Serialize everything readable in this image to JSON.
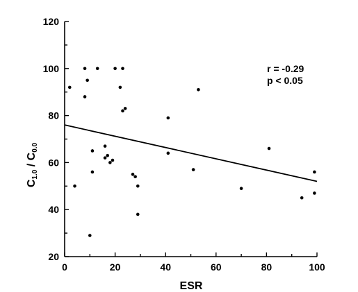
{
  "chart_data": {
    "type": "scatter",
    "title": "",
    "xlabel": "ESR",
    "ylabel": {
      "main1": "C",
      "sub1": "1.0",
      "slash": " / ",
      "main2": "C",
      "sub2": "0.0"
    },
    "xlim": [
      0,
      100
    ],
    "ylim": [
      20,
      120
    ],
    "x_ticks": [
      "0",
      "20",
      "40",
      "60",
      "80",
      "100"
    ],
    "y_ticks": [
      "20",
      "40",
      "60",
      "80",
      "100",
      "120"
    ],
    "grid": false,
    "annotations": {
      "r": "r = -0.29",
      "p": "p < 0.05"
    },
    "fit_line": {
      "x": [
        0,
        100
      ],
      "y": [
        76,
        52
      ]
    },
    "points": [
      {
        "x": 2,
        "y": 92
      },
      {
        "x": 4,
        "y": 50
      },
      {
        "x": 8,
        "y": 100
      },
      {
        "x": 8,
        "y": 88
      },
      {
        "x": 9,
        "y": 95
      },
      {
        "x": 10,
        "y": 29
      },
      {
        "x": 11,
        "y": 56
      },
      {
        "x": 11,
        "y": 65
      },
      {
        "x": 13,
        "y": 100
      },
      {
        "x": 16,
        "y": 67
      },
      {
        "x": 16,
        "y": 62
      },
      {
        "x": 17,
        "y": 63
      },
      {
        "x": 18,
        "y": 60
      },
      {
        "x": 19,
        "y": 61
      },
      {
        "x": 20,
        "y": 100
      },
      {
        "x": 22,
        "y": 92
      },
      {
        "x": 23,
        "y": 100
      },
      {
        "x": 23,
        "y": 82
      },
      {
        "x": 24,
        "y": 83
      },
      {
        "x": 27,
        "y": 55
      },
      {
        "x": 28,
        "y": 54
      },
      {
        "x": 29,
        "y": 50
      },
      {
        "x": 29,
        "y": 38
      },
      {
        "x": 41,
        "y": 64
      },
      {
        "x": 41,
        "y": 79
      },
      {
        "x": 51,
        "y": 57
      },
      {
        "x": 53,
        "y": 91
      },
      {
        "x": 70,
        "y": 49
      },
      {
        "x": 81,
        "y": 66
      },
      {
        "x": 94,
        "y": 45
      },
      {
        "x": 99,
        "y": 56
      },
      {
        "x": 99,
        "y": 47
      }
    ]
  }
}
